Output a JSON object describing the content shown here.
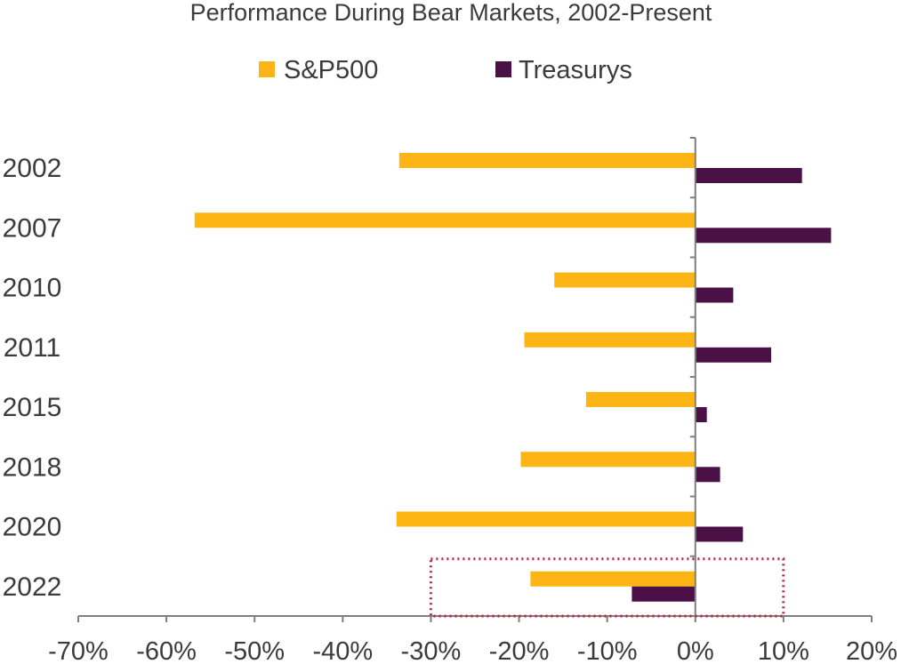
{
  "chart_data": {
    "type": "bar",
    "orientation": "horizontal",
    "title": "Performance During Bear Markets, 2002-Present",
    "categories": [
      "2002",
      "2007",
      "2010",
      "2011",
      "2015",
      "2018",
      "2020",
      "2022"
    ],
    "series": [
      {
        "name": "S&P500",
        "color": "#FDB515",
        "values": [
          -33.6,
          -56.8,
          -16.0,
          -19.4,
          -12.4,
          -19.8,
          -33.9,
          -18.7
        ]
      },
      {
        "name": "Treasurys",
        "color": "#4B1147",
        "values": [
          12.1,
          15.4,
          4.3,
          8.6,
          1.3,
          2.8,
          5.4,
          -7.2
        ]
      }
    ],
    "xlim": [
      -70,
      20
    ],
    "xticks": [
      "-70%",
      "-60%",
      "-50%",
      "-40%",
      "-30%",
      "-20%",
      "-10%",
      "0%",
      "10%",
      "20%"
    ],
    "legend_position": "top",
    "highlight_box": {
      "x_range": [
        -30,
        10
      ],
      "category": "2022",
      "color": "#C0203A",
      "style": "dotted"
    }
  }
}
